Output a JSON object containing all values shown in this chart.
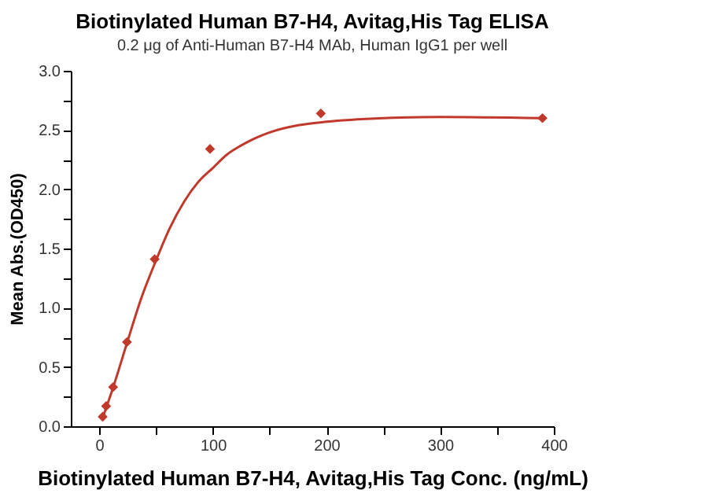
{
  "chart_data": {
    "type": "scatter",
    "title": "Biotinylated Human B7-H4, Avitag,His Tag ELISA",
    "subtitle": "0.2 μg of Anti-Human B7-H4 MAb, Human IgG1 per well",
    "xlabel": "Biotinylated Human B7-H4, Avitag,His Tag Conc. (ng/mL)",
    "ylabel": "Mean Abs.(OD450)",
    "xlim": [
      -25,
      400
    ],
    "xticks": [
      0,
      {
        "value": 50,
        "label": null
      },
      100,
      {
        "value": 150,
        "label": null
      },
      200,
      {
        "value": 250,
        "label": null
      },
      300,
      {
        "value": 350,
        "label": null
      },
      400
    ],
    "ylim": [
      0,
      3
    ],
    "yticks": [
      "0.0",
      {
        "value": 0.25,
        "label": null
      },
      {
        "value": 0.5,
        "label": "0.5"
      },
      {
        "value": 0.75,
        "label": null
      },
      {
        "value": 1,
        "label": "1.0"
      },
      {
        "value": 1.25,
        "label": null
      },
      {
        "value": 1.5,
        "label": "1.5"
      },
      {
        "value": 1.75,
        "label": null
      },
      {
        "value": 2,
        "label": "2.0"
      },
      {
        "value": 2.25,
        "label": null
      },
      {
        "value": 2.5,
        "label": "2.5"
      },
      {
        "value": 2.75,
        "label": null
      },
      {
        "value": 3,
        "label": "3.0"
      }
    ],
    "grid": false,
    "marker": "diamond",
    "series": [
      {
        "color": "#c0392b",
        "x": [
          3.05,
          6.1,
          12.2,
          24.4,
          48.8,
          97.5,
          195,
          390
        ],
        "values": [
          0.08,
          0.17,
          0.33,
          0.71,
          1.41,
          2.34,
          2.64,
          2.6
        ]
      },
      {
        "type": "line",
        "color": "#c0392b",
        "line_style": "solid",
        "marker": "none",
        "x": [
          3,
          12,
          25,
          37,
          50,
          62,
          75,
          87,
          100,
          112,
          125,
          137,
          150,
          175,
          200,
          250,
          300,
          390
        ],
        "values": [
          0.07,
          0.32,
          0.72,
          1.08,
          1.4,
          1.67,
          1.9,
          2.06,
          2.18,
          2.29,
          2.37,
          2.43,
          2.48,
          2.54,
          2.57,
          2.6,
          2.61,
          2.6
        ]
      }
    ]
  }
}
